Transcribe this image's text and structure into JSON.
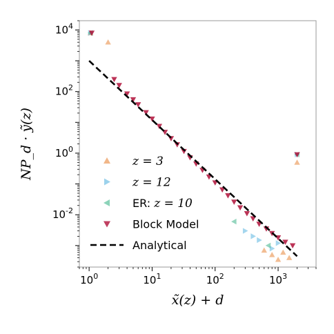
{
  "chart_data": {
    "type": "scatter",
    "title": "",
    "xlabel": "x̃(z) + d",
    "ylabel": "NP_d · ỹ(z)",
    "xscale": "log",
    "yscale": "log",
    "xlim": [
      0.7,
      4000
    ],
    "ylim": [
      0.0002,
      20000
    ],
    "grid": false,
    "legend_position": "lower-left",
    "x_ticks": [
      {
        "value": 1,
        "base": "10",
        "exp": "0"
      },
      {
        "value": 10,
        "base": "10",
        "exp": "1"
      },
      {
        "value": 100,
        "base": "10",
        "exp": "2"
      },
      {
        "value": 1000,
        "base": "10",
        "exp": "3"
      }
    ],
    "y_ticks": [
      {
        "value": 10000,
        "base": "10",
        "exp": "4"
      },
      {
        "value": 100,
        "base": "10",
        "exp": "2"
      },
      {
        "value": 1,
        "base": "10",
        "exp": "0"
      },
      {
        "value": 0.01,
        "base": "10",
        "exp": "-2"
      }
    ],
    "series": [
      {
        "name": "z = 3",
        "marker": "triangle-up",
        "color": "#e8873a",
        "points": [
          [
            1.05,
            8000
          ],
          [
            2,
            4000
          ],
          [
            2000,
            0.5
          ],
          [
            1000,
            0.00035
          ],
          [
            1500,
            0.0004
          ],
          [
            800,
            0.0005
          ],
          [
            1200,
            0.0006
          ],
          [
            600,
            0.0007
          ]
        ]
      },
      {
        "name": "z = 12",
        "marker": "triangle-right",
        "color": "#5ab4e0",
        "points": [
          [
            1.05,
            8000
          ],
          [
            2000,
            0.9
          ],
          [
            300,
            0.003
          ],
          [
            500,
            0.0015
          ],
          [
            800,
            0.0008
          ],
          [
            1000,
            0.0012
          ],
          [
            400,
            0.002
          ]
        ]
      },
      {
        "name": "ER: z = 10",
        "marker": "triangle-left",
        "color": "#3fb58a",
        "points": [
          [
            1.05,
            8000
          ],
          [
            2000,
            0.9
          ],
          [
            200,
            0.006
          ],
          [
            700,
            0.001
          ]
        ]
      },
      {
        "name": "Block Model",
        "marker": "triangle-down",
        "color": "#b0103a",
        "points": [
          [
            1.1,
            8000
          ],
          [
            2000,
            0.9
          ],
          [
            2.5,
            250
          ],
          [
            3,
            160
          ],
          [
            4,
            85
          ],
          [
            5,
            55
          ],
          [
            6,
            38
          ],
          [
            8,
            21
          ],
          [
            10,
            13
          ],
          [
            13,
            7.5
          ],
          [
            16,
            4.8
          ],
          [
            20,
            3
          ],
          [
            25,
            1.9
          ],
          [
            32,
            1.15
          ],
          [
            40,
            0.72
          ],
          [
            50,
            0.45
          ],
          [
            63,
            0.28
          ],
          [
            80,
            0.17
          ],
          [
            100,
            0.11
          ],
          [
            130,
            0.065
          ],
          [
            160,
            0.042
          ],
          [
            200,
            0.026
          ],
          [
            250,
            0.017
          ],
          [
            320,
            0.011
          ],
          [
            400,
            0.0075
          ],
          [
            500,
            0.005
          ],
          [
            650,
            0.0035
          ],
          [
            800,
            0.0025
          ],
          [
            1000,
            0.0018
          ],
          [
            1300,
            0.0013
          ],
          [
            1700,
            0.001
          ]
        ]
      }
    ],
    "analytical": {
      "name": "Analytical",
      "style": "dashed",
      "color": "#000000",
      "points": [
        [
          1,
          1000
        ],
        [
          2000,
          0.00045
        ]
      ]
    }
  },
  "legend": {
    "entries": [
      {
        "prefix": "",
        "math": "z = 3"
      },
      {
        "prefix": "",
        "math": "z = 12"
      },
      {
        "prefix": "ER: ",
        "math": "z = 10"
      },
      {
        "prefix": "Block Model",
        "math": ""
      },
      {
        "prefix": "Analytical",
        "math": ""
      }
    ]
  },
  "axis_labels": {
    "x": "x̃(z) + d",
    "y": "NP_d · ỹ(z)"
  }
}
